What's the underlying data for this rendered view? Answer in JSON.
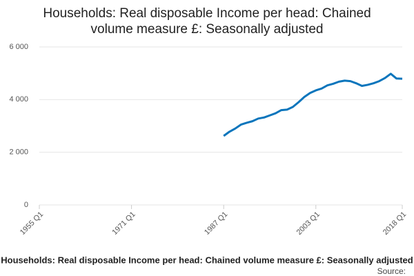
{
  "chart_data": {
    "type": "line",
    "title": "Households: Real disposable Income per head: Chained volume measure £: Seasonally adjusted",
    "source": "Source:",
    "x": [
      1987,
      1988,
      1989,
      1990,
      1991,
      1992,
      1993,
      1994,
      1995,
      1996,
      1997,
      1998,
      1999,
      2000,
      2001,
      2002,
      2003,
      2004,
      2005,
      2006,
      2007,
      2008,
      2009,
      2010,
      2011,
      2012,
      2013,
      2014,
      2015,
      2016,
      2017,
      2018
    ],
    "series": [
      {
        "color": "#0a75bc",
        "values": [
          2620,
          2780,
          2900,
          3050,
          3120,
          3180,
          3280,
          3320,
          3400,
          3480,
          3600,
          3620,
          3720,
          3900,
          4100,
          4250,
          4350,
          4420,
          4540,
          4600,
          4680,
          4720,
          4700,
          4620,
          4520,
          4560,
          4620,
          4700,
          4820,
          4980,
          4800,
          4790
        ]
      }
    ],
    "xlim": [
      1955,
      2018
    ],
    "xticks": [
      {
        "value": 1955,
        "label": "1955 Q1"
      },
      {
        "value": 1971,
        "label": "1971 Q1"
      },
      {
        "value": 1987,
        "label": "1987 Q1"
      },
      {
        "value": 2003,
        "label": "2003 Q1"
      },
      {
        "value": 2018,
        "label": "2018 Q1"
      }
    ],
    "ylim": [
      0,
      6000
    ],
    "yticks": [
      {
        "value": 0,
        "label": "0"
      },
      {
        "value": 2000,
        "label": "2 000"
      },
      {
        "value": 4000,
        "label": "4 000"
      },
      {
        "value": 6000,
        "label": "6 000"
      }
    ],
    "grid": true
  }
}
